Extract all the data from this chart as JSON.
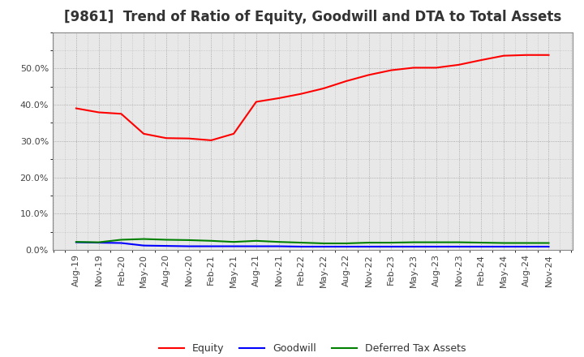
{
  "title": "[9861]  Trend of Ratio of Equity, Goodwill and DTA to Total Assets",
  "x_labels": [
    "Aug-19",
    "Nov-19",
    "Feb-20",
    "May-20",
    "Aug-20",
    "Nov-20",
    "Feb-21",
    "May-21",
    "Aug-21",
    "Nov-21",
    "Feb-22",
    "May-22",
    "Aug-22",
    "Nov-22",
    "Feb-23",
    "May-23",
    "Aug-23",
    "Nov-23",
    "Feb-24",
    "May-24",
    "Aug-24",
    "Nov-24"
  ],
  "equity": [
    0.39,
    0.379,
    0.375,
    0.32,
    0.308,
    0.307,
    0.302,
    0.32,
    0.408,
    0.418,
    0.43,
    0.445,
    0.465,
    0.482,
    0.495,
    0.502,
    0.502,
    0.51,
    0.523,
    0.535,
    0.537,
    0.537
  ],
  "goodwill": [
    0.021,
    0.02,
    0.019,
    0.012,
    0.011,
    0.01,
    0.01,
    0.01,
    0.01,
    0.01,
    0.009,
    0.009,
    0.009,
    0.009,
    0.009,
    0.009,
    0.009,
    0.009,
    0.009,
    0.009,
    0.009,
    0.009
  ],
  "dta": [
    0.022,
    0.021,
    0.028,
    0.03,
    0.028,
    0.027,
    0.025,
    0.022,
    0.025,
    0.022,
    0.02,
    0.018,
    0.018,
    0.02,
    0.02,
    0.021,
    0.021,
    0.021,
    0.02,
    0.019,
    0.019,
    0.019
  ],
  "equity_color": "#ff0000",
  "goodwill_color": "#0000ff",
  "dta_color": "#008000",
  "ylim": [
    0.0,
    0.6
  ],
  "yticks": [
    0.0,
    0.1,
    0.2,
    0.3,
    0.4,
    0.5
  ],
  "background_color": "#ffffff",
  "plot_bg_color": "#e8e8e8",
  "grid_color": "#888888",
  "title_fontsize": 12,
  "tick_fontsize": 8,
  "legend_labels": [
    "Equity",
    "Goodwill",
    "Deferred Tax Assets"
  ]
}
